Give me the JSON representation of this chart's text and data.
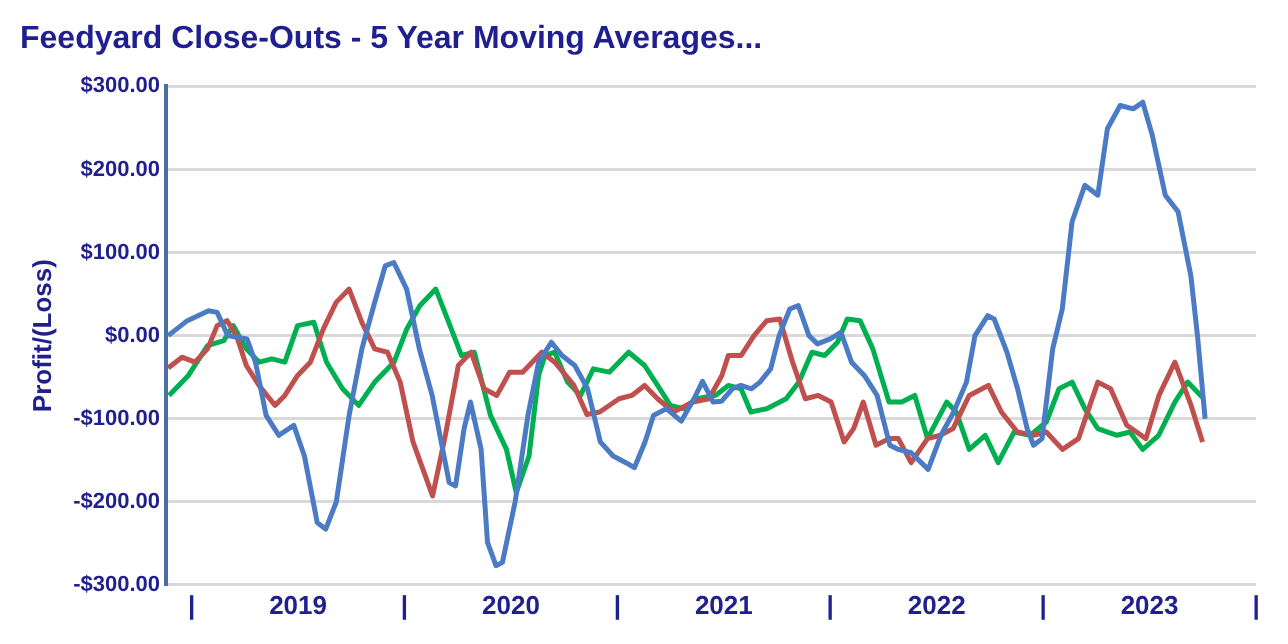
{
  "chart_data": {
    "type": "line",
    "title": "Feedyard Close-Outs - 5 Year Moving Averages...",
    "ylabel": "Profit/(Loss)",
    "marker": "none",
    "grid": "y",
    "xlim": [
      2018.88,
      2024
    ],
    "xticks": [
      {
        "value": 2019,
        "label": "|"
      },
      {
        "value": 2019.5,
        "label": "2019"
      },
      {
        "value": 2020,
        "label": "|"
      },
      {
        "value": 2020.5,
        "label": "2020"
      },
      {
        "value": 2021,
        "label": "|"
      },
      {
        "value": 2021.5,
        "label": "2021"
      },
      {
        "value": 2022,
        "label": "|"
      },
      {
        "value": 2022.5,
        "label": "2022"
      },
      {
        "value": 2023,
        "label": "|"
      },
      {
        "value": 2023.5,
        "label": "2023"
      },
      {
        "value": 2024,
        "label": "|"
      }
    ],
    "ylim": [
      -300,
      300
    ],
    "yticks": [
      {
        "value": -300,
        "label": "-$300.00"
      },
      {
        "value": -200,
        "label": "-$200.00"
      },
      {
        "value": -100,
        "label": "-$100.00"
      },
      {
        "value": 0,
        "label": "$0.00"
      },
      {
        "value": 100,
        "label": "$100.00"
      },
      {
        "value": 200,
        "label": "$200.00"
      },
      {
        "value": 300,
        "label": "$300.00"
      }
    ],
    "series": [
      {
        "color": "#4a7bc4",
        "x": [
          2018.89,
          2018.98,
          2019.08,
          2019.12,
          2019.17,
          2019.26,
          2019.3,
          2019.35,
          2019.41,
          2019.48,
          2019.53,
          2019.59,
          2019.63,
          2019.68,
          2019.74,
          2019.8,
          2019.86,
          2019.91,
          2019.95,
          2020.01,
          2020.07,
          2020.13,
          2020.21,
          2020.24,
          2020.28,
          2020.31,
          2020.36,
          2020.39,
          2020.43,
          2020.46,
          2020.52,
          2020.58,
          2020.63,
          2020.69,
          2020.74,
          2020.8,
          2020.86,
          2020.92,
          2020.98,
          2021.04,
          2021.08,
          2021.13,
          2021.17,
          2021.23,
          2021.3,
          2021.36,
          2021.4,
          2021.45,
          2021.49,
          2021.54,
          2021.58,
          2021.63,
          2021.67,
          2021.72,
          2021.76,
          2021.81,
          2021.85,
          2021.9,
          2021.94,
          2022,
          2022.05,
          2022.1,
          2022.16,
          2022.22,
          2022.28,
          2022.32,
          2022.38,
          2022.46,
          2022.52,
          2022.58,
          2022.64,
          2022.68,
          2022.74,
          2022.77,
          2022.83,
          2022.88,
          2022.925,
          2022.955,
          2022.995,
          2023.045,
          2023.09,
          2023.136,
          2023.196,
          2023.257,
          2023.302,
          2023.362,
          2023.423,
          2023.468,
          2023.513,
          2023.574,
          2023.634,
          2023.694,
          2023.725,
          2023.761
        ],
        "values": [
          0,
          18,
          30,
          28,
          0,
          -4,
          -32,
          -96,
          -120,
          -108,
          -145,
          -225,
          -233,
          -200,
          -96,
          -16,
          40,
          84,
          88,
          56,
          -16,
          -72,
          -177,
          -181,
          -112,
          -80,
          -137,
          -249,
          -277,
          -273,
          -200,
          -96,
          -32,
          -8,
          -24,
          -36,
          -64,
          -128,
          -145,
          -153,
          -159,
          -128,
          -96,
          -88,
          -103,
          -76,
          -55,
          -80,
          -79,
          -64,
          -60,
          -64,
          -56,
          -40,
          0,
          32,
          36,
          0,
          -10,
          -4,
          4,
          -32,
          -48,
          -72,
          -132,
          -137,
          -141,
          -161,
          -120,
          -92,
          -56,
          0,
          24,
          20,
          -20,
          -64,
          -112,
          -132,
          -124,
          -16,
          32,
          137,
          181,
          169,
          249,
          277,
          273,
          281,
          241,
          169,
          149,
          72,
          0,
          -100
        ]
      },
      {
        "color": "#c0504d",
        "x": [
          2018.89,
          2018.955,
          2019.015,
          2019.075,
          2019.12,
          2019.166,
          2019.211,
          2019.257,
          2019.317,
          2019.392,
          2019.438,
          2019.498,
          2019.558,
          2019.619,
          2019.679,
          2019.74,
          2019.8,
          2019.86,
          2019.92,
          2019.98,
          2020.04,
          2020.132,
          2020.192,
          2020.253,
          2020.313,
          2020.374,
          2020.434,
          2020.494,
          2020.555,
          2020.645,
          2020.706,
          2020.796,
          2020.857,
          2020.917,
          2021.008,
          2021.068,
          2021.128,
          2021.189,
          2021.264,
          2021.355,
          2021.43,
          2021.491,
          2021.521,
          2021.581,
          2021.642,
          2021.702,
          2021.763,
          2021.823,
          2021.883,
          2021.944,
          2022.004,
          2022.065,
          2022.11,
          2022.155,
          2022.215,
          2022.276,
          2022.32,
          2022.38,
          2022.457,
          2022.517,
          2022.577,
          2022.653,
          2022.743,
          2022.804,
          2022.879,
          2022.955,
          2023.015,
          2023.091,
          2023.166,
          2023.257,
          2023.317,
          2023.393,
          2023.483,
          2023.544,
          2023.619,
          2023.695,
          2023.749
        ],
        "values": [
          -39,
          -26,
          -32,
          -16,
          12,
          18,
          0,
          -36,
          -60,
          -84,
          -72,
          -48,
          -32,
          8,
          40,
          56,
          16,
          -16,
          -20,
          -56,
          -128,
          -193,
          -120,
          -36,
          -20,
          -64,
          -72,
          -44,
          -44,
          -20,
          -32,
          -60,
          -95,
          -92,
          -76,
          -72,
          -60,
          -76,
          -92,
          -80,
          -76,
          -48,
          -24,
          -24,
          0,
          18,
          20,
          -32,
          -76,
          -72,
          -80,
          -128,
          -112,
          -80,
          -132,
          -124,
          -124,
          -153,
          -124,
          -120,
          -112,
          -72,
          -60,
          -92,
          -116,
          -120,
          -116,
          -137,
          -124,
          -56,
          -64,
          -108,
          -124,
          -72,
          -32,
          -84,
          -128
        ]
      },
      {
        "color": "#00b050",
        "x": [
          2018.894,
          2018.985,
          2019.075,
          2019.151,
          2019.196,
          2019.257,
          2019.317,
          2019.377,
          2019.438,
          2019.498,
          2019.574,
          2019.634,
          2019.709,
          2019.785,
          2019.86,
          2019.951,
          2020.011,
          2020.072,
          2020.147,
          2020.208,
          2020.268,
          2020.328,
          2020.404,
          2020.479,
          2020.525,
          2020.585,
          2020.63,
          2020.66,
          2020.706,
          2020.766,
          2020.827,
          2020.887,
          2020.962,
          2021.053,
          2021.128,
          2021.189,
          2021.249,
          2021.31,
          2021.37,
          2021.461,
          2021.521,
          2021.581,
          2021.627,
          2021.702,
          2021.793,
          2021.853,
          2021.914,
          2021.974,
          2022.034,
          2022.08,
          2022.14,
          2022.2,
          2022.276,
          2022.336,
          2022.397,
          2022.457,
          2022.547,
          2022.592,
          2022.653,
          2022.728,
          2022.789,
          2022.864,
          2022.94,
          2023.015,
          2023.075,
          2023.136,
          2023.196,
          2023.257,
          2023.347,
          2023.408,
          2023.468,
          2023.543,
          2023.619,
          2023.679,
          2023.755
        ],
        "values": [
          -72,
          -48,
          -12,
          -6,
          12,
          -16,
          -32,
          -28,
          -32,
          12,
          16,
          -32,
          -64,
          -84,
          -56,
          -32,
          8,
          36,
          56,
          16,
          -24,
          -20,
          -96,
          -137,
          -189,
          -145,
          -48,
          -24,
          -20,
          -56,
          -72,
          -40,
          -44,
          -20,
          -36,
          -60,
          -84,
          -88,
          -76,
          -72,
          -60,
          -64,
          -92,
          -88,
          -76,
          -56,
          -20,
          -24,
          -8,
          20,
          18,
          -16,
          -80,
          -80,
          -72,
          -124,
          -80,
          -92,
          -137,
          -120,
          -153,
          -116,
          -120,
          -104,
          -64,
          -56,
          -88,
          -112,
          -120,
          -116,
          -137,
          -120,
          -80,
          -56,
          -76
        ]
      }
    ]
  }
}
